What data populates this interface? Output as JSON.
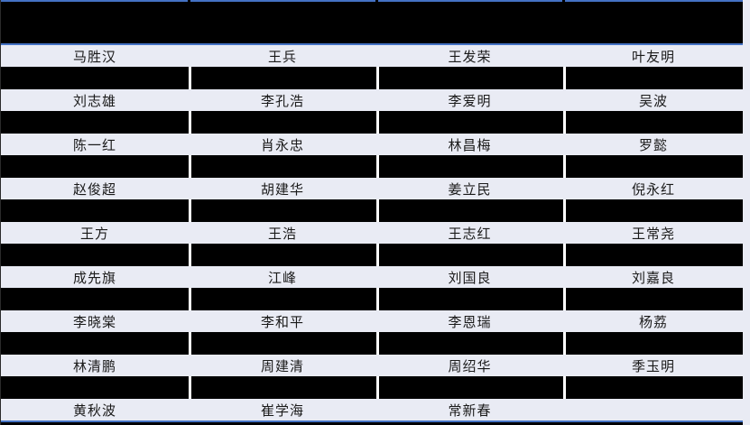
{
  "table": {
    "column_count": 4,
    "header_redacted": true,
    "rows": [
      {
        "cells": [
          "马胜汉",
          "王兵",
          "王发荣",
          "叶友明"
        ]
      },
      {
        "cells": [
          "刘志雄",
          "李孔浩",
          "李爱明",
          "吴波"
        ]
      },
      {
        "cells": [
          "陈一红",
          "肖永忠",
          "林昌梅",
          "罗懿"
        ]
      },
      {
        "cells": [
          "赵俊超",
          "胡建华",
          "姜立民",
          "倪永红"
        ]
      },
      {
        "cells": [
          "王方",
          "王浩",
          "王志红",
          "王常尧"
        ]
      },
      {
        "cells": [
          "成先旗",
          "江峰",
          "刘国良",
          "刘嘉良"
        ]
      },
      {
        "cells": [
          "李晓棠",
          "李和平",
          "李恩瑞",
          "杨荔"
        ]
      },
      {
        "cells": [
          "林清鹏",
          "周建清",
          "周绍华",
          "季玉明"
        ]
      },
      {
        "cells": [
          "黄秋波",
          "崔学海",
          "常新春",
          ""
        ]
      }
    ]
  },
  "colors": {
    "accent_blue": "#4472c4",
    "row_background": "#e9ebf4",
    "redacted_black": "#000000",
    "divider_white": "#ffffff",
    "text": "#1a1a1a"
  }
}
